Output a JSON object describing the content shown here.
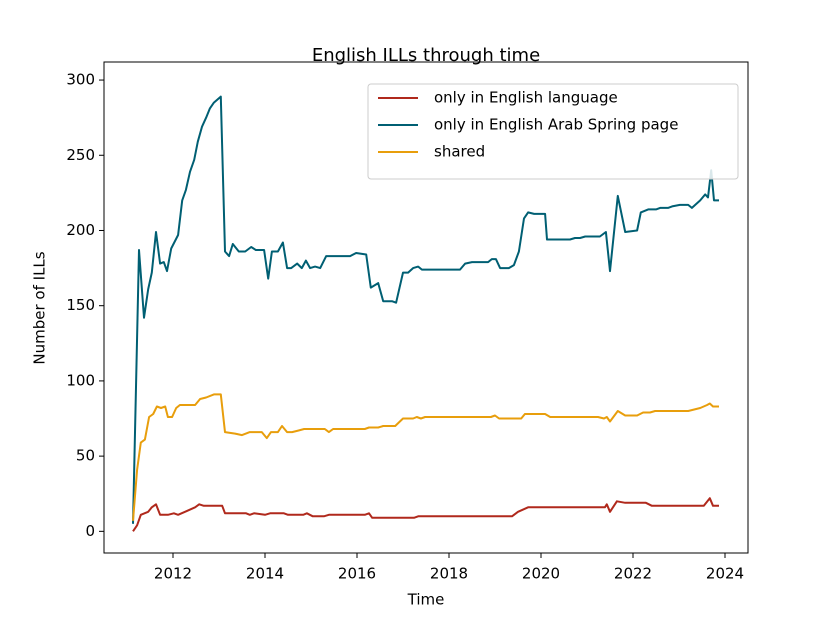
{
  "chart_data": {
    "type": "line",
    "title": "English ILLs through time",
    "xlabel": "Time",
    "ylabel": "Number of ILLs",
    "xlim": [
      2010.5,
      2024.5
    ],
    "xticks": [
      2012,
      2014,
      2016,
      2018,
      2020,
      2022,
      2024
    ],
    "ylim": [
      -14.4,
      312
    ],
    "yticks": [
      0,
      50,
      100,
      150,
      200,
      250,
      300
    ],
    "legend": "upper right",
    "series": [
      {
        "name": "only in English language",
        "color": "#b0291c",
        "x": [
          2011.13,
          2011.22,
          2011.3,
          2011.46,
          2011.54,
          2011.63,
          2011.72,
          2011.89,
          2012.02,
          2012.11,
          2012.26,
          2012.48,
          2012.57,
          2012.67,
          2013.07,
          2013.13,
          2013.59,
          2013.67,
          2013.76,
          2014.0,
          2014.11,
          2014.41,
          2014.5,
          2014.83,
          2014.91,
          2015.04,
          2015.28,
          2015.39,
          2016.17,
          2016.26,
          2016.33,
          2017.24,
          2017.33,
          2019.37,
          2019.5,
          2019.72,
          2021.39,
          2021.43,
          2021.5,
          2021.65,
          2021.83,
          2022.28,
          2022.41,
          2023.54,
          2023.67,
          2023.74,
          2023.87
        ],
        "values": [
          0,
          4,
          11,
          13,
          16,
          18,
          11,
          11,
          12,
          11,
          13,
          16,
          18,
          17,
          17,
          12,
          12,
          11,
          12,
          11,
          12,
          12,
          11,
          11,
          12,
          10,
          10,
          11,
          11,
          12,
          9,
          9,
          10,
          10,
          13,
          16,
          16,
          18,
          13,
          20,
          19,
          19,
          17,
          17,
          22,
          17,
          17
        ]
      },
      {
        "name": "only in English Arab Spring page",
        "color": "#005f73",
        "x": [
          2011.13,
          2011.26,
          2011.37,
          2011.46,
          2011.54,
          2011.63,
          2011.72,
          2011.8,
          2011.87,
          2011.96,
          2012.11,
          2012.2,
          2012.28,
          2012.37,
          2012.46,
          2012.54,
          2012.63,
          2012.72,
          2012.8,
          2012.89,
          2013.04,
          2013.13,
          2013.22,
          2013.3,
          2013.43,
          2013.57,
          2013.7,
          2013.8,
          2013.98,
          2014.07,
          2014.15,
          2014.28,
          2014.39,
          2014.48,
          2014.57,
          2014.7,
          2014.8,
          2014.89,
          2014.98,
          2015.09,
          2015.2,
          2015.33,
          2015.43,
          2015.85,
          2015.98,
          2016.2,
          2016.3,
          2016.46,
          2016.57,
          2016.76,
          2016.85,
          2017.0,
          2017.11,
          2017.22,
          2017.33,
          2017.41,
          2017.54,
          2018.24,
          2018.35,
          2018.5,
          2018.85,
          2018.93,
          2019.02,
          2019.11,
          2019.3,
          2019.41,
          2019.52,
          2019.63,
          2019.72,
          2019.85,
          2020.09,
          2020.13,
          2020.63,
          2020.74,
          2020.85,
          2020.96,
          2021.28,
          2021.41,
          2021.5,
          2021.67,
          2021.83,
          2022.09,
          2022.17,
          2022.33,
          2022.5,
          2022.59,
          2022.76,
          2022.85,
          2023.02,
          2023.2,
          2023.28,
          2023.46,
          2023.57,
          2023.63,
          2023.7,
          2023.76,
          2023.87
        ],
        "values": [
          5,
          187,
          142,
          161,
          172,
          199,
          178,
          179,
          173,
          188,
          197,
          220,
          227,
          239,
          247,
          259,
          269,
          275,
          281,
          285,
          289,
          186,
          183,
          191,
          186,
          186,
          189,
          187,
          187,
          168,
          186,
          186,
          192,
          175,
          175,
          178,
          175,
          180,
          175,
          176,
          175,
          183,
          183,
          183,
          185,
          184,
          162,
          165,
          153,
          153,
          152,
          172,
          172,
          175,
          176,
          174,
          174,
          174,
          178,
          179,
          179,
          181,
          181,
          175,
          175,
          177,
          186,
          208,
          212,
          211,
          211,
          194,
          194,
          195,
          195,
          196,
          196,
          199,
          173,
          223,
          199,
          200,
          212,
          214,
          214,
          215,
          215,
          216,
          217,
          217,
          215,
          220,
          224,
          222,
          240,
          220,
          220
        ]
      },
      {
        "name": "shared",
        "color": "#e89e0c",
        "x": [
          2011.13,
          2011.22,
          2011.3,
          2011.39,
          2011.48,
          2011.57,
          2011.65,
          2011.74,
          2011.83,
          2011.89,
          2011.98,
          2012.07,
          2012.15,
          2012.37,
          2012.48,
          2012.59,
          2012.72,
          2012.89,
          2013.04,
          2013.13,
          2013.35,
          2013.5,
          2013.67,
          2013.93,
          2014.04,
          2014.13,
          2014.28,
          2014.37,
          2014.48,
          2014.59,
          2014.72,
          2014.85,
          2015.3,
          2015.39,
          2015.48,
          2016.17,
          2016.26,
          2016.46,
          2016.57,
          2016.83,
          2017.0,
          2017.22,
          2017.3,
          2017.39,
          2017.48,
          2018.91,
          2019.0,
          2019.09,
          2019.57,
          2019.65,
          2020.09,
          2020.2,
          2021.24,
          2021.37,
          2021.43,
          2021.5,
          2021.67,
          2021.83,
          2022.09,
          2022.22,
          2022.37,
          2022.48,
          2022.76,
          2022.85,
          2023.2,
          2023.46,
          2023.61,
          2023.67,
          2023.74,
          2023.87
        ],
        "values": [
          7,
          41,
          59,
          61,
          76,
          78,
          83,
          82,
          83,
          76,
          76,
          82,
          84,
          84,
          84,
          88,
          89,
          91,
          91,
          66,
          65,
          64,
          66,
          66,
          62,
          66,
          66,
          70,
          66,
          66,
          67,
          68,
          68,
          66,
          68,
          68,
          69,
          69,
          70,
          70,
          75,
          75,
          76,
          75,
          76,
          76,
          77,
          75,
          75,
          78,
          78,
          76,
          76,
          75,
          76,
          73,
          80,
          77,
          77,
          79,
          79,
          80,
          80,
          80,
          80,
          82,
          84,
          85,
          83,
          83
        ]
      }
    ]
  }
}
